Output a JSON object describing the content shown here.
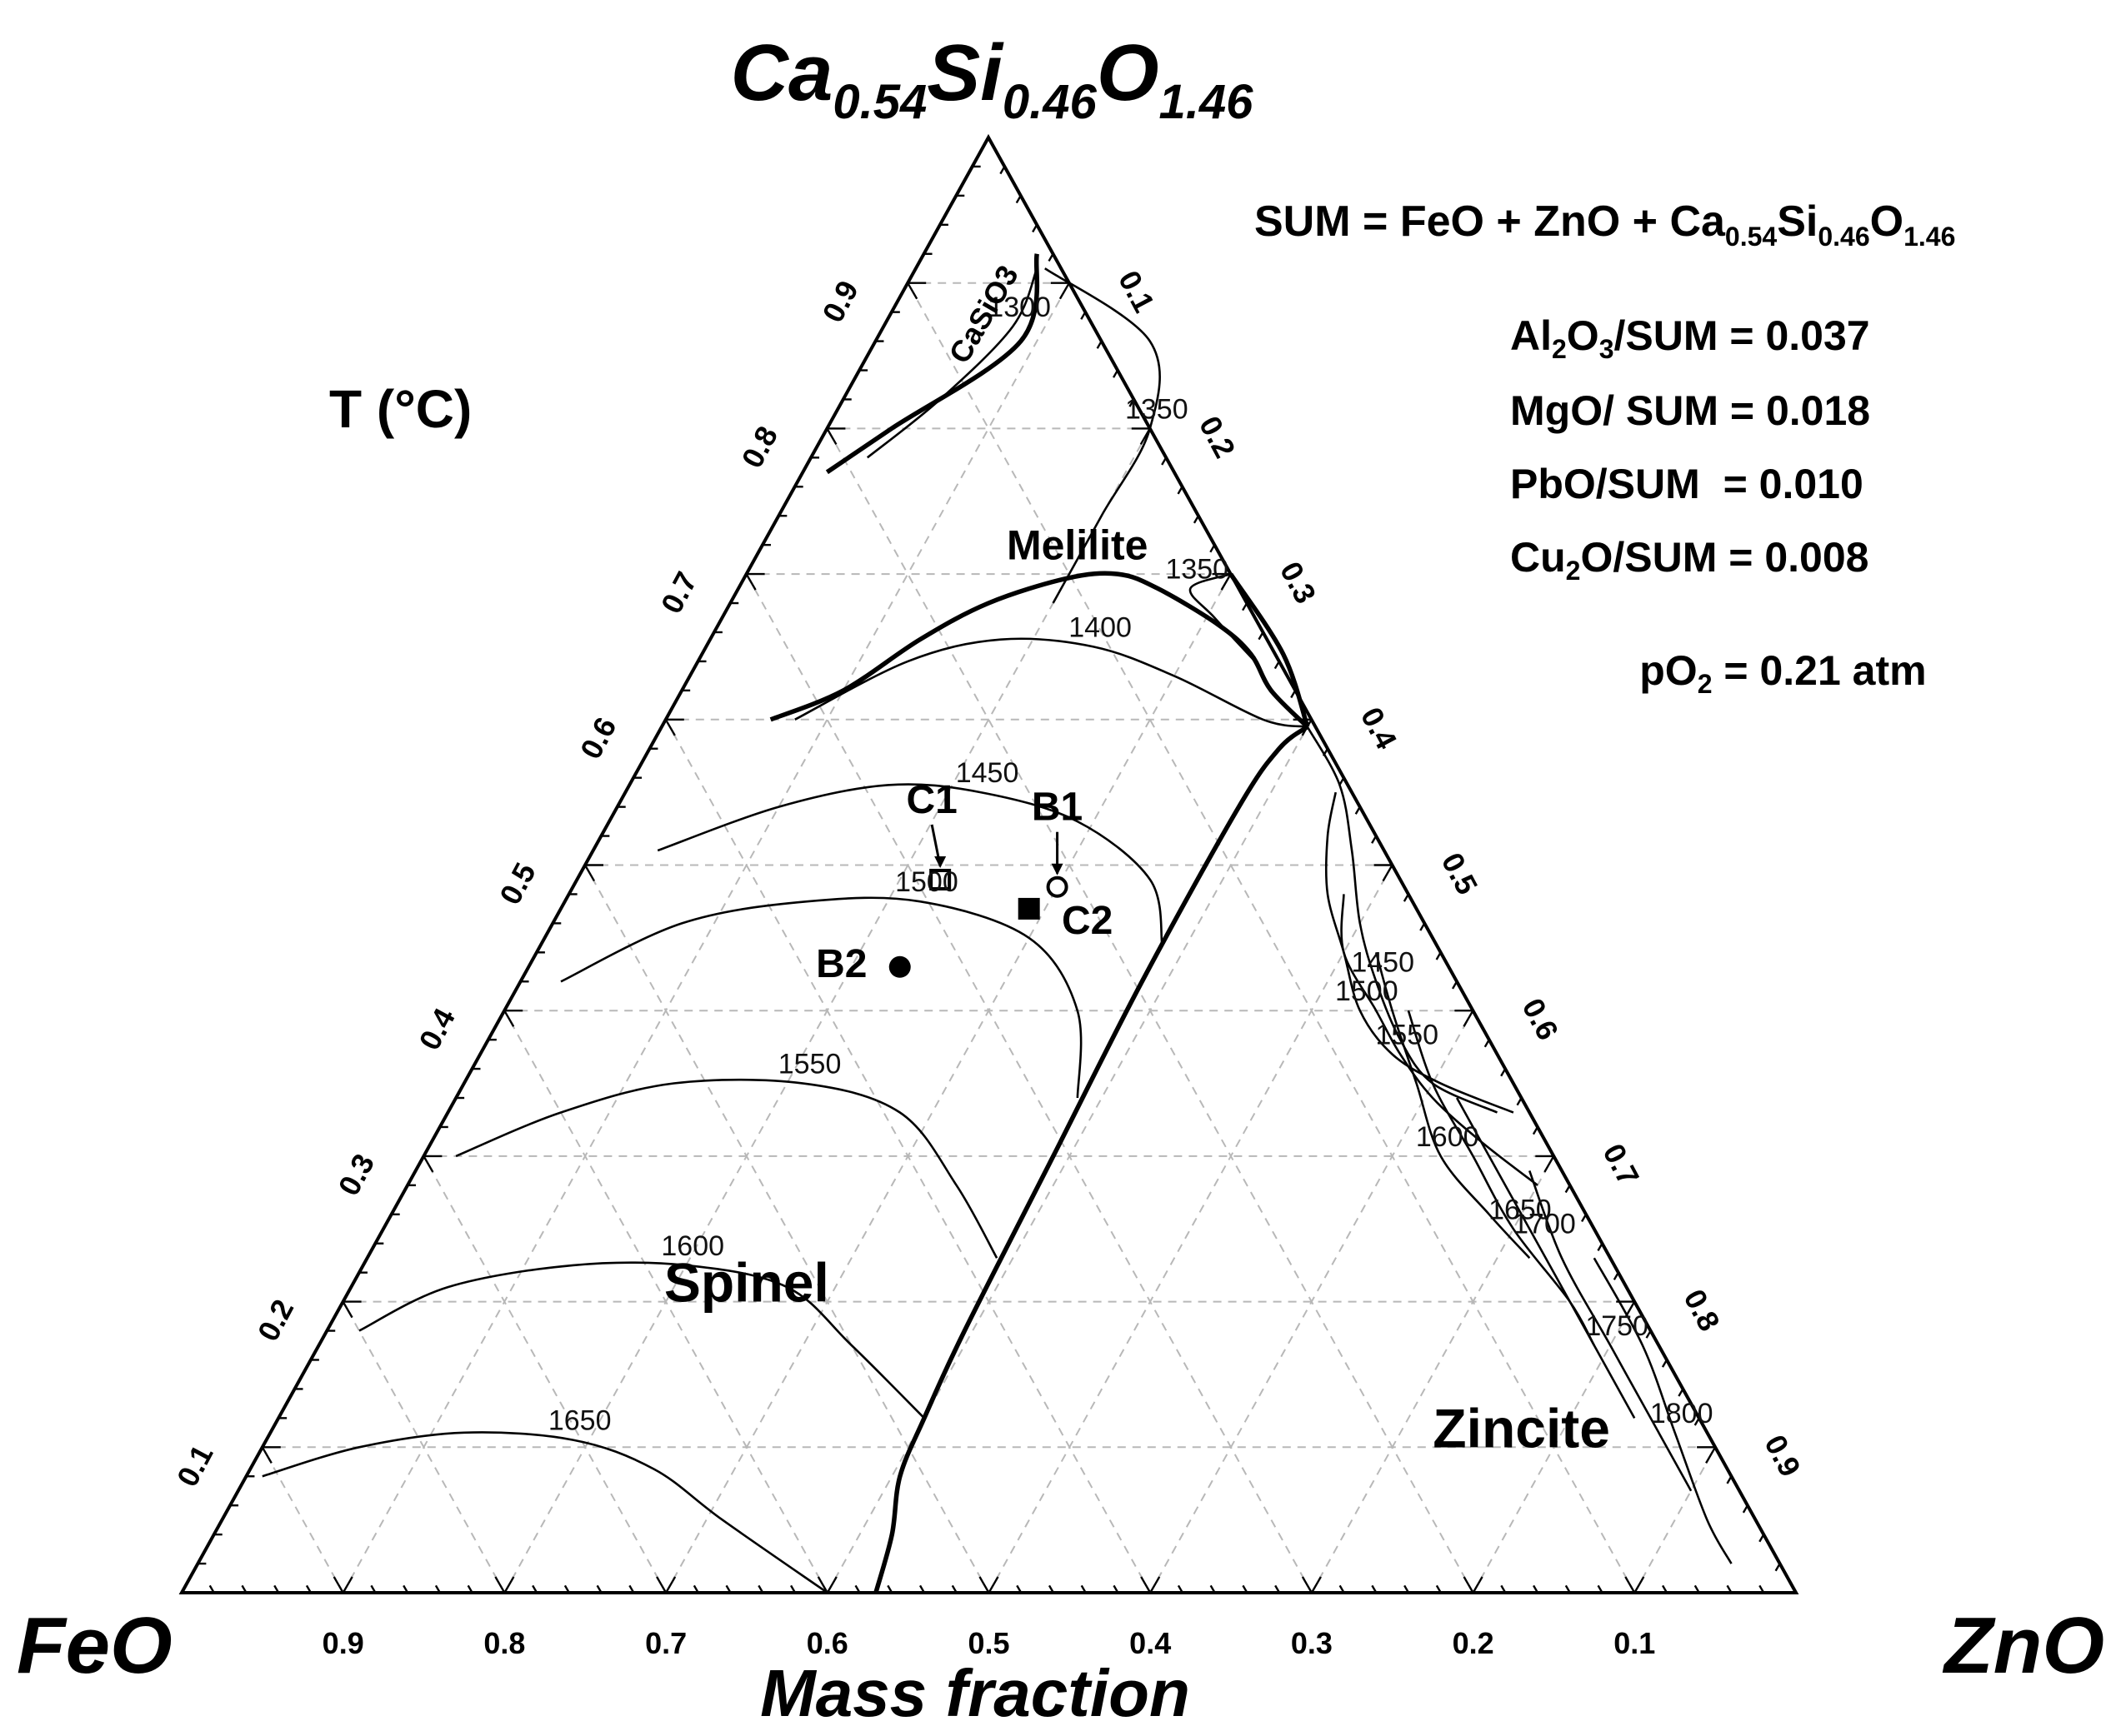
{
  "chart_data": {
    "type": "ternary",
    "apex_labels": {
      "top": [
        "Ca",
        "0.54",
        "Si",
        "0.46",
        "O",
        "1.46"
      ],
      "left": "FeO",
      "right": "ZnO"
    },
    "axis_title": "Mass fraction",
    "temperature_label": "T (°C)",
    "info_lines": {
      "sum": [
        "SUM = FeO + ZnO + Ca",
        "0.54",
        "Si",
        "0.46",
        "O",
        "1.46"
      ],
      "al2o3": [
        "Al",
        "2",
        "O",
        "3",
        "/SUM = 0.037"
      ],
      "mgo": "MgO/ SUM = 0.018",
      "pbo": "PbO/SUM  = 0.010",
      "cu2o": [
        "Cu",
        "2",
        "O/SUM = 0.008"
      ],
      "po2": [
        "pO",
        "2",
        " = 0.21 atm"
      ]
    },
    "tick_labels": {
      "bottom": [
        "0.9",
        "0.8",
        "0.7",
        "0.6",
        "0.5",
        "0.4",
        "0.3",
        "0.2",
        "0.1"
      ],
      "left": [
        "0.1",
        "0.2",
        "0.3",
        "0.4",
        "0.5",
        "0.6",
        "0.7",
        "0.8",
        "0.9"
      ],
      "right": [
        "0.1",
        "0.2",
        "0.3",
        "0.4",
        "0.5",
        "0.6",
        "0.7",
        "0.8",
        "0.9"
      ]
    },
    "grid": true,
    "regions": [
      {
        "name": "Spinel",
        "composition": {
          "C": 0.2,
          "Z": 0.25
        }
      },
      {
        "name": "Melilite",
        "composition": {
          "C": 0.71,
          "Z": 0.2
        }
      },
      {
        "name": "Zincite",
        "composition": {
          "C": 0.1,
          "Z": 0.78
        }
      },
      {
        "name": "CaSiO3",
        "composition": {
          "C": 0.875,
          "Z": 0.065
        }
      }
    ],
    "phase_boundaries": [
      {
        "name": "spinel-zincite",
        "points": [
          [
            0.0,
            0.43
          ],
          [
            0.04,
            0.42
          ],
          [
            0.08,
            0.405
          ],
          [
            0.12,
            0.4
          ],
          [
            0.18,
            0.395
          ],
          [
            0.3,
            0.39
          ],
          [
            0.42,
            0.385
          ],
          [
            0.54,
            0.385
          ],
          [
            0.58,
            0.39
          ],
          [
            0.595,
            0.4
          ]
        ]
      },
      {
        "name": "spinel-melilite",
        "points": [
          [
            0.595,
            0.4
          ],
          [
            0.62,
            0.365
          ],
          [
            0.645,
            0.34
          ],
          [
            0.665,
            0.31
          ],
          [
            0.69,
            0.26
          ],
          [
            0.7,
            0.23
          ],
          [
            0.697,
            0.2
          ],
          [
            0.68,
            0.16
          ],
          [
            0.655,
            0.13
          ],
          [
            0.62,
            0.1
          ],
          [
            0.6,
            0.065
          ]
        ]
      },
      {
        "name": "melilite-zincite",
        "points": [
          [
            0.595,
            0.4
          ],
          [
            0.645,
            0.36
          ],
          [
            0.7,
            0.3
          ]
        ]
      },
      {
        "name": "melilite-casio3",
        "points": [
          [
            0.77,
            0.015
          ],
          [
            0.8,
            0.04
          ],
          [
            0.86,
            0.09
          ],
          [
            0.92,
            0.07
          ]
        ]
      }
    ],
    "isotherms": [
      {
        "label": "1300",
        "points": [
          [
            0.78,
            0.035
          ],
          [
            0.82,
            0.06
          ],
          [
            0.87,
            0.08
          ],
          [
            0.91,
            0.075
          ]
        ]
      },
      {
        "label": "1350",
        "points": [
          [
            0.68,
            0.2
          ],
          [
            0.74,
            0.2
          ],
          [
            0.8,
            0.2
          ],
          [
            0.86,
            0.17
          ],
          [
            0.91,
            0.08
          ]
        ]
      },
      {
        "label": "1350",
        "points": [
          [
            0.64,
            0.345
          ],
          [
            0.67,
            0.305
          ],
          [
            0.69,
            0.28
          ],
          [
            0.7,
            0.3
          ]
        ]
      },
      {
        "label": "1400",
        "points": [
          [
            0.6,
            0.08
          ],
          [
            0.64,
            0.13
          ],
          [
            0.655,
            0.18
          ],
          [
            0.65,
            0.24
          ],
          [
            0.63,
            0.3
          ],
          [
            0.6,
            0.37
          ],
          [
            0.595,
            0.4
          ]
        ]
      },
      {
        "label": "1450",
        "points": [
          [
            0.51,
            0.04
          ],
          [
            0.54,
            0.1
          ],
          [
            0.555,
            0.16
          ],
          [
            0.55,
            0.22
          ],
          [
            0.53,
            0.29
          ],
          [
            0.49,
            0.355
          ],
          [
            0.445,
            0.385
          ]
        ]
      },
      {
        "label": "1450",
        "points": [
          [
            0.595,
            0.4
          ],
          [
            0.555,
            0.44
          ],
          [
            0.51,
            0.47
          ],
          [
            0.46,
            0.5
          ],
          [
            0.42,
            0.53
          ],
          [
            0.38,
            0.565
          ],
          [
            0.35,
            0.6
          ],
          [
            0.33,
            0.65
          ]
        ]
      },
      {
        "label": "1500",
        "points": [
          [
            0.42,
            0.025
          ],
          [
            0.46,
            0.08
          ],
          [
            0.475,
            0.15
          ],
          [
            0.475,
            0.22
          ],
          [
            0.45,
            0.3
          ],
          [
            0.4,
            0.355
          ],
          [
            0.34,
            0.385
          ]
        ]
      },
      {
        "label": "1500",
        "points": [
          [
            0.55,
            0.44
          ],
          [
            0.52,
            0.45
          ],
          [
            0.48,
            0.47
          ],
          [
            0.44,
            0.5
          ],
          [
            0.4,
            0.53
          ],
          [
            0.37,
            0.565
          ],
          [
            0.35,
            0.605
          ],
          [
            0.33,
            0.66
          ]
        ]
      },
      {
        "label": "1550",
        "points": [
          [
            0.3,
            0.02
          ],
          [
            0.33,
            0.07
          ],
          [
            0.35,
            0.13
          ],
          [
            0.35,
            0.21
          ],
          [
            0.33,
            0.28
          ],
          [
            0.28,
            0.34
          ],
          [
            0.23,
            0.39
          ]
        ]
      },
      {
        "label": "1550",
        "points": [
          [
            0.48,
            0.48
          ],
          [
            0.44,
            0.5
          ],
          [
            0.4,
            0.54
          ],
          [
            0.37,
            0.57
          ],
          [
            0.34,
            0.605
          ],
          [
            0.31,
            0.65
          ],
          [
            0.28,
            0.7
          ]
        ]
      },
      {
        "label": "1600",
        "points": [
          [
            0.18,
            0.02
          ],
          [
            0.21,
            0.06
          ],
          [
            0.225,
            0.13
          ],
          [
            0.225,
            0.2
          ],
          [
            0.21,
            0.27
          ],
          [
            0.17,
            0.33
          ],
          [
            0.12,
            0.4
          ]
        ]
      },
      {
        "label": "1600",
        "points": [
          [
            0.44,
            0.52
          ],
          [
            0.4,
            0.55
          ],
          [
            0.35,
            0.59
          ],
          [
            0.3,
            0.63
          ],
          [
            0.26,
            0.68
          ],
          [
            0.23,
            0.72
          ]
        ]
      },
      {
        "label": "1650",
        "points": [
          [
            0.08,
            0.01
          ],
          [
            0.1,
            0.06
          ],
          [
            0.11,
            0.12
          ],
          [
            0.105,
            0.19
          ],
          [
            0.085,
            0.25
          ],
          [
            0.05,
            0.31
          ],
          [
            0.0,
            0.4
          ]
        ]
      },
      {
        "label": "1650",
        "points": [
          [
            0.4,
            0.56
          ],
          [
            0.35,
            0.6
          ],
          [
            0.3,
            0.65
          ],
          [
            0.25,
            0.7
          ],
          [
            0.2,
            0.76
          ],
          [
            0.17,
            0.79
          ]
        ]
      },
      {
        "label": "1700",
        "points": [
          [
            0.34,
            0.62
          ],
          [
            0.29,
            0.67
          ],
          [
            0.24,
            0.72
          ],
          [
            0.18,
            0.78
          ],
          [
            0.12,
            0.84
          ]
        ]
      },
      {
        "label": "1750",
        "points": [
          [
            0.29,
            0.69
          ],
          [
            0.23,
            0.74
          ],
          [
            0.17,
            0.8
          ],
          [
            0.11,
            0.86
          ],
          [
            0.07,
            0.9
          ]
        ]
      },
      {
        "label": "1800",
        "points": [
          [
            0.23,
            0.76
          ],
          [
            0.17,
            0.82
          ],
          [
            0.11,
            0.87
          ],
          [
            0.05,
            0.92
          ],
          [
            0.02,
            0.95
          ]
        ]
      }
    ],
    "data_points": [
      {
        "label": "C1",
        "marker": "open-square",
        "C": 0.49,
        "Z": 0.225
      },
      {
        "label": "B1",
        "marker": "open-circle",
        "C": 0.485,
        "Z": 0.3
      },
      {
        "label": "C2",
        "marker": "filled-square",
        "C": 0.47,
        "Z": 0.29
      },
      {
        "label": "B2",
        "marker": "filled-circle",
        "C": 0.43,
        "Z": 0.23
      }
    ]
  }
}
